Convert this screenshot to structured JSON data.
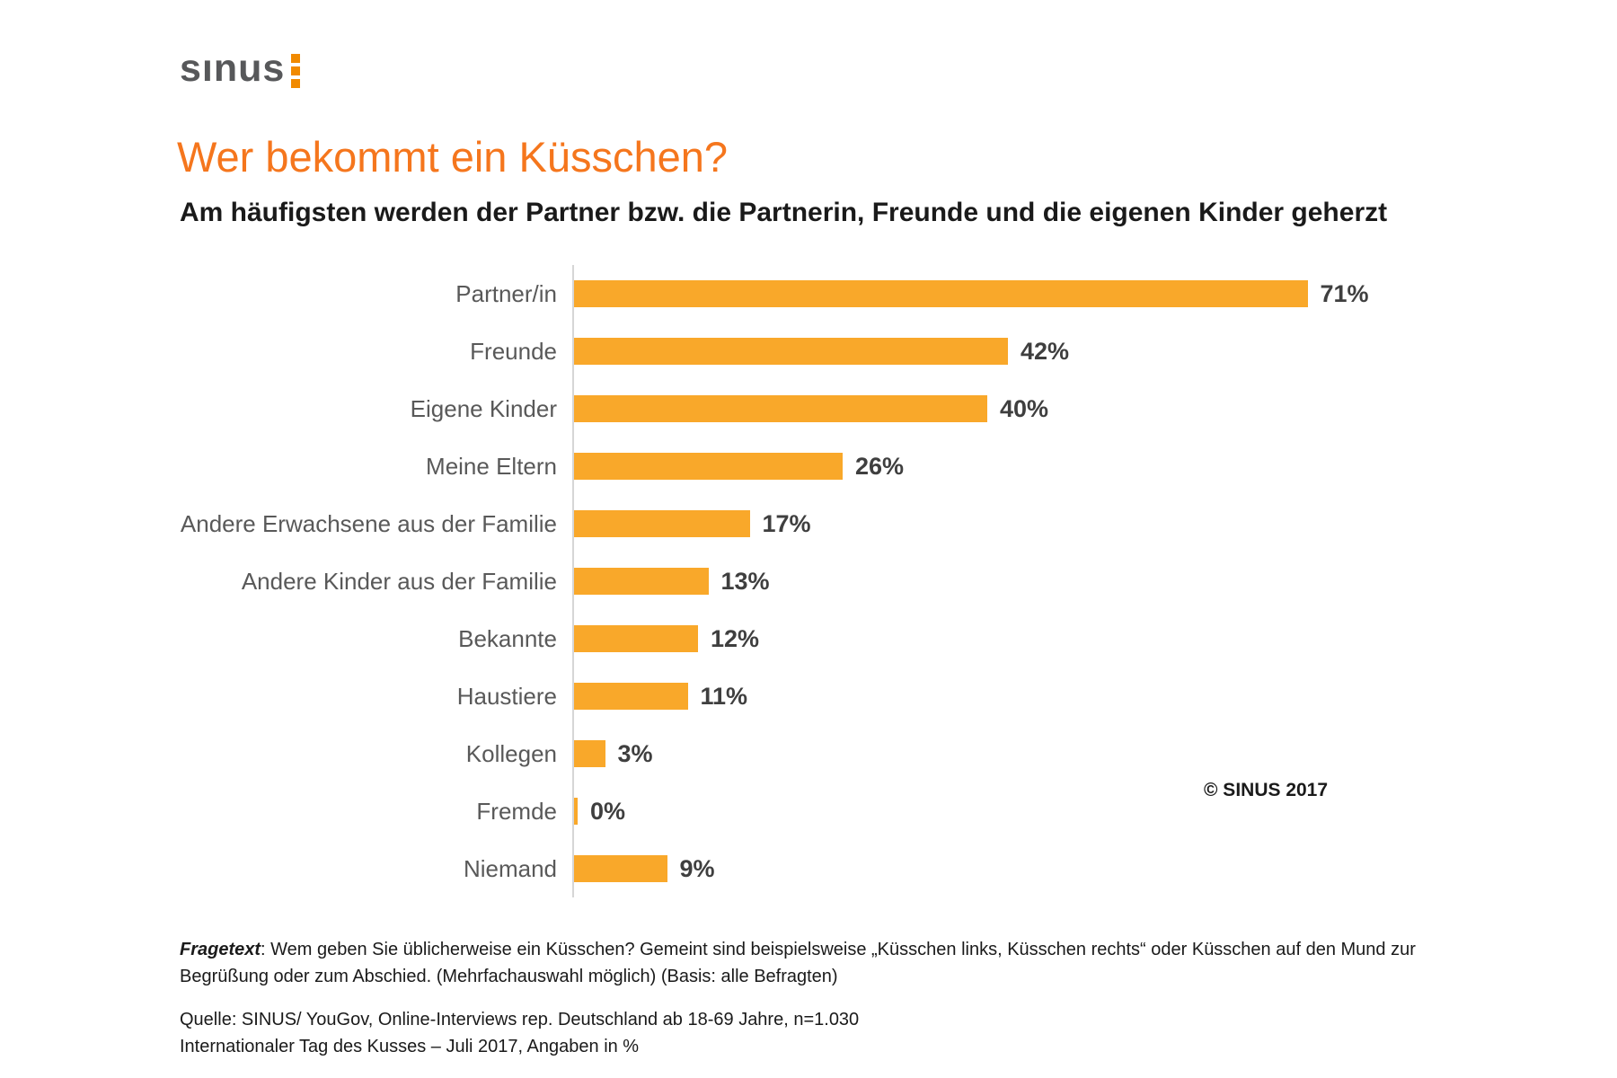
{
  "logo": {
    "text": "sınus",
    "dot_color": "#f18a00",
    "dot_count": 3
  },
  "header": {
    "title": "Wer bekommt ein Küsschen?",
    "title_color": "#f5761d",
    "subtitle": "Am häufigsten werden der Partner bzw. die Partnerin, Freunde und die eigenen Kinder geherzt"
  },
  "chart_data": {
    "type": "bar",
    "orientation": "horizontal",
    "title": "Wer bekommt ein Küsschen?",
    "categories": [
      "Partner/in",
      "Freunde",
      "Eigene Kinder",
      "Meine Eltern",
      "Andere Erwachsene aus der Familie",
      "Andere Kinder aus der Familie",
      "Bekannte",
      "Haustiere",
      "Kollegen",
      "Fremde",
      "Niemand"
    ],
    "values": [
      71,
      42,
      40,
      26,
      17,
      13,
      12,
      11,
      3,
      0,
      9
    ],
    "value_labels": [
      "71%",
      "42%",
      "40%",
      "26%",
      "17%",
      "13%",
      "12%",
      "11%",
      "3%",
      "0%",
      "9%"
    ],
    "unit": "%",
    "bar_color": "#f9a82a",
    "xlim": [
      0,
      78
    ],
    "grid": false,
    "legend": "none",
    "copyright": "© SINUS 2017"
  },
  "footer": {
    "fragetext_label": "Fragetext",
    "fragetext_body": ": Wem geben Sie üblicherweise ein Küsschen? Gemeint sind beispielsweise „Küsschen links, Küsschen rechts“ oder Küsschen auf den Mund zur Begrüßung oder zum Abschied. (Mehrfachauswahl möglich)  (Basis: alle Befragten)",
    "source_line1": "Quelle: SINUS/ YouGov, Online-Interviews rep. Deutschland ab 18-69 Jahre, n=1.030",
    "source_line2": "Internationaler Tag des Kusses – Juli 2017, Angaben in %"
  }
}
